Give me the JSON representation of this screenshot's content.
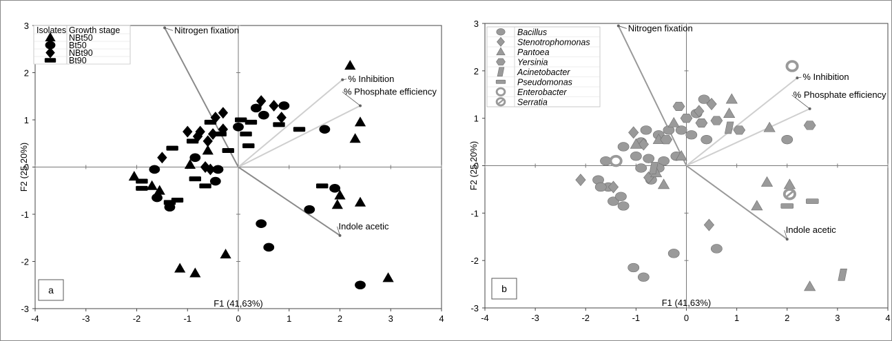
{
  "chart_data": [
    {
      "type": "scatter",
      "panel_label": "a",
      "xlabel": "F1 (41,63%)",
      "ylabel": "F2 (25,20%)",
      "xlim": [
        -4,
        4
      ],
      "ylim": [
        -3,
        3
      ],
      "x_ticks": [
        "-4",
        "-3",
        "-2",
        "-1",
        "0",
        "1",
        "2",
        "3",
        "4"
      ],
      "y_ticks": [
        "3",
        "2",
        "1",
        "0",
        "-1",
        "-2",
        "-3"
      ],
      "legend": {
        "headers": [
          "Isolates",
          "Growth stage"
        ],
        "entries": [
          {
            "marker": "triangle",
            "label": "NBt50"
          },
          {
            "marker": "circle",
            "label": "Bt50"
          },
          {
            "marker": "diamond",
            "label": "NBt90"
          },
          {
            "marker": "rect",
            "label": "Bt90"
          }
        ]
      },
      "vectors": [
        {
          "label": "Nitrogen fixation",
          "x": -1.45,
          "y": 2.95
        },
        {
          "label": "% Inhibition",
          "x": 2.05,
          "y": 1.85
        },
        {
          "label": "% Phosphate efficiency",
          "x": 2.4,
          "y": 1.3
        },
        {
          "label": "Indole acetic",
          "x": 2.0,
          "y": -1.45
        }
      ],
      "series": [
        {
          "marker": "triangle",
          "points": [
            [
              2.2,
              2.15
            ],
            [
              2.4,
              0.95
            ],
            [
              2.3,
              0.6
            ],
            [
              -2.05,
              -0.2
            ],
            [
              -1.55,
              -0.5
            ],
            [
              -1.7,
              -0.4
            ],
            [
              -0.95,
              0.05
            ],
            [
              -0.6,
              0.35
            ],
            [
              2.0,
              -0.6
            ],
            [
              1.95,
              -0.8
            ],
            [
              2.4,
              -0.75
            ],
            [
              2.95,
              -2.35
            ],
            [
              -1.15,
              -2.15
            ],
            [
              -0.85,
              -2.25
            ],
            [
              -0.25,
              -1.85
            ]
          ]
        },
        {
          "marker": "circle",
          "points": [
            [
              0.9,
              1.3
            ],
            [
              0.0,
              0.85
            ],
            [
              0.35,
              1.25
            ],
            [
              0.5,
              1.1
            ],
            [
              1.7,
              0.8
            ],
            [
              1.9,
              -0.45
            ],
            [
              1.4,
              -0.9
            ],
            [
              0.45,
              -1.2
            ],
            [
              0.6,
              -1.7
            ],
            [
              2.4,
              -2.5
            ],
            [
              -1.65,
              -0.05
            ],
            [
              -1.6,
              -0.65
            ],
            [
              -1.35,
              -0.85
            ],
            [
              -0.85,
              0.2
            ],
            [
              -0.4,
              -0.05
            ],
            [
              -0.45,
              -0.3
            ]
          ]
        },
        {
          "marker": "diamond",
          "points": [
            [
              0.45,
              1.4
            ],
            [
              0.7,
              1.3
            ],
            [
              0.85,
              1.05
            ],
            [
              -0.3,
              1.15
            ],
            [
              -0.45,
              1.05
            ],
            [
              -0.3,
              0.8
            ],
            [
              -1.0,
              0.75
            ],
            [
              -0.75,
              0.75
            ],
            [
              -0.8,
              0.65
            ],
            [
              -0.5,
              0.7
            ],
            [
              -0.6,
              0.55
            ],
            [
              -1.5,
              0.2
            ],
            [
              -0.65,
              0.0
            ],
            [
              -0.55,
              -0.05
            ]
          ]
        },
        {
          "marker": "rect",
          "points": [
            [
              -0.55,
              0.95
            ],
            [
              0.05,
              1.0
            ],
            [
              0.25,
              0.95
            ],
            [
              0.15,
              0.7
            ],
            [
              0.2,
              0.45
            ],
            [
              0.8,
              0.9
            ],
            [
              1.2,
              0.8
            ],
            [
              -0.35,
              0.7
            ],
            [
              -0.9,
              0.55
            ],
            [
              -0.2,
              0.35
            ],
            [
              -1.3,
              0.4
            ],
            [
              -1.9,
              -0.3
            ],
            [
              -1.9,
              -0.45
            ],
            [
              -1.2,
              -0.7
            ],
            [
              -1.35,
              -0.75
            ],
            [
              -0.85,
              -0.25
            ],
            [
              -0.65,
              -0.4
            ],
            [
              1.65,
              -0.4
            ]
          ]
        }
      ]
    },
    {
      "type": "scatter",
      "panel_label": "b",
      "xlabel": "F1 (41,63%)",
      "ylabel": "F2 (25,20%)",
      "xlim": [
        -4,
        4
      ],
      "ylim": [
        -3,
        3
      ],
      "x_ticks": [
        "-4",
        "-3",
        "-2",
        "-1",
        "0",
        "1",
        "2",
        "3",
        "4"
      ],
      "y_ticks": [
        "3",
        "2",
        "1",
        "0",
        "-1",
        "-2",
        "-3"
      ],
      "legend": {
        "entries": [
          {
            "marker": "circle",
            "label": "Bacillus"
          },
          {
            "marker": "diamond",
            "label": "Stenotrophomonas"
          },
          {
            "marker": "triangle",
            "label": "Pantoea"
          },
          {
            "marker": "hexagon",
            "label": "Yersinia"
          },
          {
            "marker": "parallelogram",
            "label": "Acinetobacter"
          },
          {
            "marker": "rect",
            "label": "Pseudomonas"
          },
          {
            "marker": "ring",
            "label": "Enterobacter"
          },
          {
            "marker": "slashring",
            "label": "Serratia"
          }
        ]
      },
      "vectors": [
        {
          "label": "Nitrogen fixation",
          "x": -1.35,
          "y": 2.95
        },
        {
          "label": "% Inhibition",
          "x": 2.2,
          "y": 1.85
        },
        {
          "label": "% Phosphate efficiency",
          "x": 2.45,
          "y": 1.2
        },
        {
          "label": "Indole acetic",
          "x": 2.0,
          "y": -1.55
        }
      ],
      "series": [
        {
          "marker": "circle",
          "points": [
            [
              0.35,
              1.4
            ],
            [
              0.2,
              1.1
            ],
            [
              0.1,
              0.65
            ],
            [
              0.4,
              0.55
            ],
            [
              -0.1,
              0.75
            ],
            [
              -0.35,
              0.75
            ],
            [
              -0.55,
              0.65
            ],
            [
              -0.8,
              0.75
            ],
            [
              -0.9,
              0.5
            ],
            [
              -1.0,
              0.2
            ],
            [
              -0.75,
              0.15
            ],
            [
              -0.45,
              0.1
            ],
            [
              -0.2,
              0.2
            ],
            [
              -0.9,
              -0.05
            ],
            [
              -0.55,
              -0.05
            ],
            [
              -0.7,
              -0.3
            ],
            [
              -1.25,
              0.4
            ],
            [
              -1.6,
              0.1
            ],
            [
              -1.75,
              -0.3
            ],
            [
              -1.55,
              -0.45
            ],
            [
              -1.7,
              -0.45
            ],
            [
              -1.45,
              -0.75
            ],
            [
              -1.3,
              -0.65
            ],
            [
              -1.25,
              -0.85
            ],
            [
              -0.25,
              -1.85
            ],
            [
              -1.05,
              -2.15
            ],
            [
              -0.85,
              -2.35
            ],
            [
              2.0,
              0.55
            ],
            [
              0.6,
              -1.75
            ]
          ]
        },
        {
          "marker": "diamond",
          "points": [
            [
              0.5,
              1.3
            ],
            [
              0.25,
              1.15
            ],
            [
              -1.05,
              0.7
            ],
            [
              -0.85,
              0.45
            ],
            [
              -1.45,
              -0.45
            ],
            [
              -2.1,
              -0.3
            ],
            [
              -0.75,
              -0.25
            ],
            [
              0.45,
              -1.25
            ]
          ]
        },
        {
          "marker": "triangle",
          "points": [
            [
              0.9,
              1.4
            ],
            [
              0.85,
              1.1
            ],
            [
              -0.25,
              0.9
            ],
            [
              -0.1,
              0.2
            ],
            [
              -0.55,
              0.55
            ],
            [
              -1.0,
              0.45
            ],
            [
              -0.45,
              -0.4
            ],
            [
              -0.6,
              -0.15
            ],
            [
              1.65,
              0.8
            ],
            [
              1.6,
              -0.35
            ],
            [
              2.05,
              -0.4
            ],
            [
              1.4,
              -0.85
            ],
            [
              2.45,
              -2.55
            ]
          ]
        },
        {
          "marker": "hexagon",
          "points": [
            [
              -0.15,
              1.25
            ],
            [
              0.0,
              1.0
            ],
            [
              0.3,
              0.9
            ],
            [
              0.6,
              0.95
            ],
            [
              1.05,
              0.75
            ],
            [
              -0.4,
              0.55
            ],
            [
              2.45,
              0.85
            ]
          ]
        },
        {
          "marker": "parallelogram",
          "points": [
            [
              0.85,
              0.8
            ],
            [
              -0.65,
              -0.05
            ],
            [
              3.1,
              -2.3
            ]
          ]
        },
        {
          "marker": "rect",
          "points": [
            [
              2.0,
              -0.85
            ],
            [
              2.5,
              -0.75
            ]
          ]
        },
        {
          "marker": "ring",
          "points": [
            [
              2.1,
              2.1
            ],
            [
              -1.4,
              0.1
            ]
          ]
        },
        {
          "marker": "slashring",
          "points": [
            [
              2.05,
              -0.6
            ]
          ]
        }
      ]
    }
  ]
}
